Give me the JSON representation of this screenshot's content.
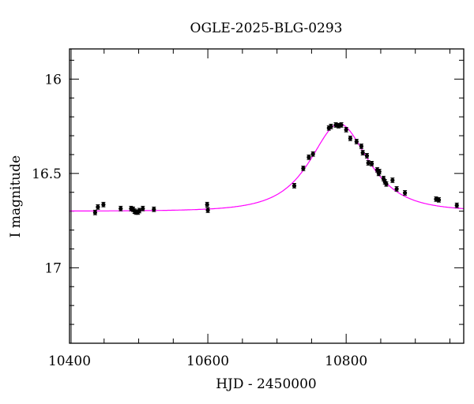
{
  "chart_data": {
    "type": "scatter",
    "title": "OGLE-2025-BLG-0293",
    "xlabel": "HJD - 2450000",
    "ylabel": "I magnitude",
    "xlim": [
      10400,
      10970
    ],
    "ylim": [
      17.4,
      15.84
    ],
    "y_inverted": true,
    "grid": false,
    "x_ticks": [
      "10400",
      "10600",
      "10800"
    ],
    "x_tick_values": [
      10400,
      10600,
      10800
    ],
    "y_ticks": [
      "16",
      "16.5",
      "17"
    ],
    "y_tick_values": [
      16,
      16.5,
      17
    ],
    "colors": {
      "points": "#000000",
      "model": "#ff00ff"
    },
    "points": {
      "x": [
        10437,
        10441,
        10449,
        10474,
        10489,
        10492,
        10494,
        10496,
        10499,
        10501,
        10506,
        10522,
        10599,
        10600,
        10725,
        10738,
        10746,
        10752,
        10775,
        10778,
        10785,
        10789,
        10793,
        10800,
        10806,
        10815,
        10822,
        10824,
        10830,
        10832,
        10837,
        10845,
        10847,
        10848,
        10854,
        10856,
        10858,
        10867,
        10873,
        10885,
        10930,
        10934,
        10960
      ],
      "y": [
        16.707,
        16.678,
        16.665,
        16.686,
        16.686,
        16.69,
        16.7,
        16.705,
        16.705,
        16.697,
        16.686,
        16.69,
        16.665,
        16.695,
        16.565,
        16.473,
        16.414,
        16.397,
        16.259,
        16.251,
        16.243,
        16.247,
        16.243,
        16.268,
        16.314,
        16.331,
        16.356,
        16.39,
        16.406,
        16.444,
        16.448,
        16.481,
        16.5,
        16.49,
        16.527,
        16.544,
        16.556,
        16.536,
        16.582,
        16.603,
        16.636,
        16.64,
        16.669
      ],
      "yerr": 0.012
    },
    "model": {
      "type": "line",
      "baseline_mag": 16.7,
      "peak_mag": 16.245,
      "peak_time": 10790
    }
  }
}
